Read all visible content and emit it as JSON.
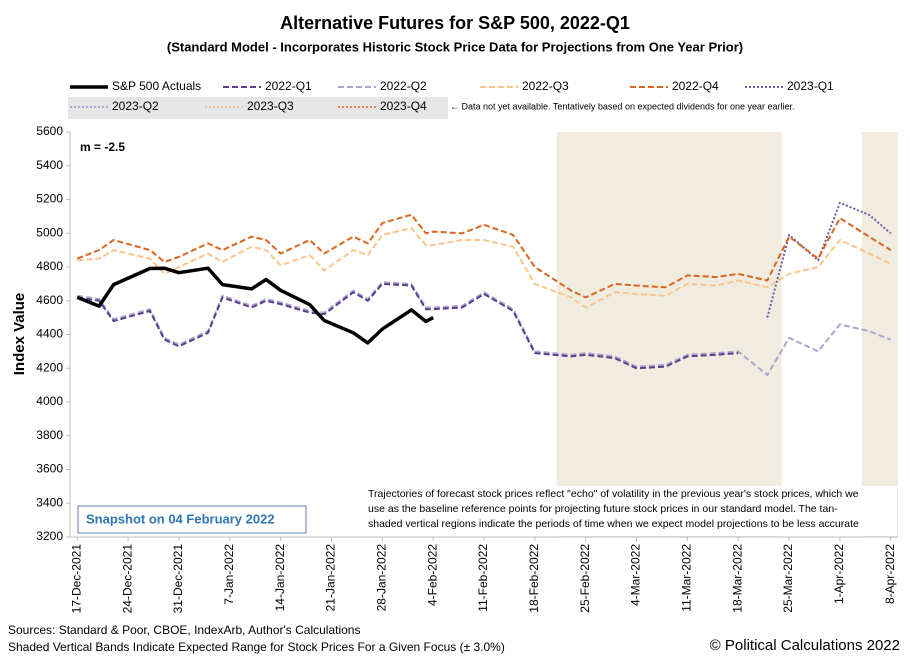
{
  "chart_data": {
    "type": "line",
    "title": "Alternative Futures for S&P 500, 2022-Q1",
    "subtitle": "(Standard Model - Incorporates Historic Stock Price Data for Projections from One Year Prior)",
    "y_label": "Index Value",
    "annotation": "m = -2.5",
    "legend_note": "← Data not yet available.  Tentatively based on expected dividends for one year earlier.",
    "snapshot": "Snapshot on 04 February 2022",
    "note": [
      "Trajectories of forecast stock prices reflect \"echo\" of volatility in  the previous year's stock prices, which we",
      "use as the baseline reference points for projecting future stock prices in our standard model.   The tan-",
      "shaded vertical regions indicate the periods of time when we expect model projections to be less accurate"
    ],
    "sources": [
      "Sources: Standard & Poor, CBOE, IndexArb, Author's Calculations",
      "Shaded Vertical Bands Indicate Expected Range for Stock Prices For a Given Focus (± 3.0%)"
    ],
    "copyright": "© Political Calculations 2022",
    "shaded_periods": [
      [
        "2022-02-21",
        "2022-03-24"
      ],
      [
        "2022-04-04",
        "2022-04-09"
      ]
    ],
    "x": [
      "2021-12-17",
      "2021-12-20",
      "2021-12-22",
      "2021-12-27",
      "2021-12-29",
      "2021-12-31",
      "2022-01-04",
      "2022-01-06",
      "2022-01-10",
      "2022-01-12",
      "2022-01-14",
      "2022-01-18",
      "2022-01-20",
      "2022-01-24",
      "2022-01-26",
      "2022-01-28",
      "2022-02-01",
      "2022-02-03",
      "2022-02-04",
      "2022-02-08",
      "2022-02-11",
      "2022-02-15",
      "2022-02-18",
      "2022-02-23",
      "2022-02-25",
      "2022-03-01",
      "2022-03-04",
      "2022-03-08",
      "2022-03-11",
      "2022-03-15",
      "2022-03-18",
      "2022-03-22",
      "2022-03-25",
      "2022-03-29",
      "2022-04-01",
      "2022-04-05",
      "2022-04-08"
    ],
    "xlim": [
      "2021-12-16",
      "2022-04-09"
    ],
    "xticks": [
      {
        "value": "2021-12-17",
        "label": "17-Dec-2021"
      },
      {
        "value": "2021-12-24",
        "label": "24-Dec-2021"
      },
      {
        "value": "2021-12-31",
        "label": "31-Dec-2021"
      },
      {
        "value": "2022-01-07",
        "label": "7-Jan-2022"
      },
      {
        "value": "2022-01-14",
        "label": "14-Jan-2022"
      },
      {
        "value": "2022-01-21",
        "label": "21-Jan-2022"
      },
      {
        "value": "2022-01-28",
        "label": "28-Jan-2022"
      },
      {
        "value": "2022-02-04",
        "label": "4-Feb-2022"
      },
      {
        "value": "2022-02-11",
        "label": "11-Feb-2022"
      },
      {
        "value": "2022-02-18",
        "label": "18-Feb-2022"
      },
      {
        "value": "2022-02-25",
        "label": "25-Feb-2022"
      },
      {
        "value": "2022-03-04",
        "label": "4-Mar-2022"
      },
      {
        "value": "2022-03-11",
        "label": "11-Mar-2022"
      },
      {
        "value": "2022-03-18",
        "label": "18-Mar-2022"
      },
      {
        "value": "2022-03-25",
        "label": "25-Mar-2022"
      },
      {
        "value": "2022-04-01",
        "label": "1-Apr-2022"
      },
      {
        "value": "2022-04-08",
        "label": "8-Apr-2022"
      }
    ],
    "ylim": [
      3200,
      5600
    ],
    "yticks": [
      3200,
      3400,
      3600,
      3800,
      4000,
      4200,
      4400,
      4600,
      4800,
      5000,
      5200,
      5400,
      5600
    ],
    "series": [
      {
        "name": "S&P 500 Actuals",
        "color": "#000000",
        "dash": "solid",
        "values": [
          4620,
          4568,
          4696,
          4791,
          4793,
          4766,
          4793,
          4696,
          4670,
          4726,
          4662,
          4577,
          4483,
          4410,
          4350,
          4432,
          4546,
          4477,
          4500,
          null,
          null,
          null,
          null,
          null,
          null,
          null,
          null,
          null,
          null,
          null,
          null,
          null,
          null,
          null,
          null,
          null,
          null
        ]
      },
      {
        "name": "2022-Q1",
        "color": "#5b3f8f",
        "dash": "dashed",
        "values": [
          4620,
          4600,
          4480,
          4540,
          4370,
          4330,
          4410,
          4620,
          4560,
          4600,
          4580,
          4530,
          4520,
          4650,
          4600,
          4700,
          4690,
          4550,
          4550,
          4560,
          4640,
          4540,
          4290,
          4270,
          4280,
          4260,
          4200,
          4210,
          4270,
          4280,
          4290,
          null,
          null,
          null,
          null,
          null,
          null
        ]
      },
      {
        "name": "2022-Q2",
        "color": "#aaa4cf",
        "dash": "dashed",
        "values": [
          4630,
          4610,
          4490,
          4550,
          4380,
          4340,
          4420,
          4630,
          4570,
          4610,
          4590,
          4540,
          4530,
          4660,
          4610,
          4710,
          4700,
          4560,
          4560,
          4570,
          4650,
          4550,
          4300,
          4280,
          4290,
          4270,
          4210,
          4220,
          4280,
          4290,
          4300,
          4160,
          4380,
          4300,
          4460,
          4420,
          4370
        ]
      },
      {
        "name": "2022-Q3",
        "color": "#fac58c",
        "dash": "dashed",
        "values": [
          4840,
          4850,
          4900,
          4850,
          4760,
          4800,
          4880,
          4830,
          4920,
          4900,
          4810,
          4870,
          4780,
          4900,
          4870,
          4990,
          5030,
          4930,
          4930,
          4960,
          4960,
          4920,
          4700,
          4620,
          4560,
          4650,
          4640,
          4630,
          4700,
          4690,
          4720,
          4680,
          4760,
          4800,
          4960,
          4880,
          4820
        ]
      },
      {
        "name": "2022-Q4",
        "color": "#d9661f",
        "dash": "dashed",
        "values": [
          4850,
          4900,
          4960,
          4900,
          4830,
          4860,
          4940,
          4900,
          4980,
          4960,
          4880,
          4960,
          4880,
          4980,
          4940,
          5060,
          5110,
          5000,
          5010,
          5000,
          5050,
          4990,
          4800,
          4660,
          4620,
          4700,
          4690,
          4680,
          4750,
          4740,
          4760,
          4720,
          4980,
          4850,
          5090,
          4980,
          4900
        ]
      },
      {
        "name": "2023-Q1",
        "color": "#6a5aa8",
        "dash": "dotted",
        "values": [
          null,
          null,
          null,
          null,
          null,
          null,
          null,
          null,
          null,
          null,
          null,
          null,
          null,
          null,
          null,
          null,
          null,
          null,
          null,
          null,
          null,
          null,
          null,
          null,
          null,
          null,
          null,
          null,
          null,
          null,
          null,
          4500,
          4990,
          4840,
          5180,
          5110,
          5000
        ]
      },
      {
        "name": "2023-Q2",
        "color": "#b3a6d6",
        "dash": "dotted",
        "values": [
          null,
          null,
          null,
          null,
          null,
          null,
          null,
          null,
          null,
          null,
          null,
          null,
          null,
          null,
          null,
          null,
          null,
          null,
          null,
          null,
          null,
          null,
          null,
          null,
          null,
          null,
          null,
          null,
          null,
          null,
          null,
          null,
          null,
          null,
          null,
          null,
          null
        ]
      },
      {
        "name": "2023-Q3",
        "color": "#f6c88e",
        "dash": "dotted",
        "values": [
          null,
          null,
          null,
          null,
          null,
          null,
          null,
          null,
          null,
          null,
          null,
          null,
          null,
          null,
          null,
          null,
          null,
          null,
          null,
          null,
          null,
          null,
          null,
          null,
          null,
          null,
          null,
          null,
          null,
          null,
          null,
          null,
          null,
          null,
          null,
          null,
          null
        ]
      },
      {
        "name": "2023-Q4",
        "color": "#e8804a",
        "dash": "dotted",
        "values": [
          null,
          null,
          null,
          null,
          null,
          null,
          null,
          null,
          null,
          null,
          null,
          null,
          null,
          null,
          null,
          null,
          null,
          null,
          null,
          null,
          null,
          null,
          null,
          null,
          null,
          null,
          null,
          null,
          null,
          null,
          null,
          null,
          null,
          null,
          null,
          null,
          null
        ]
      }
    ]
  }
}
